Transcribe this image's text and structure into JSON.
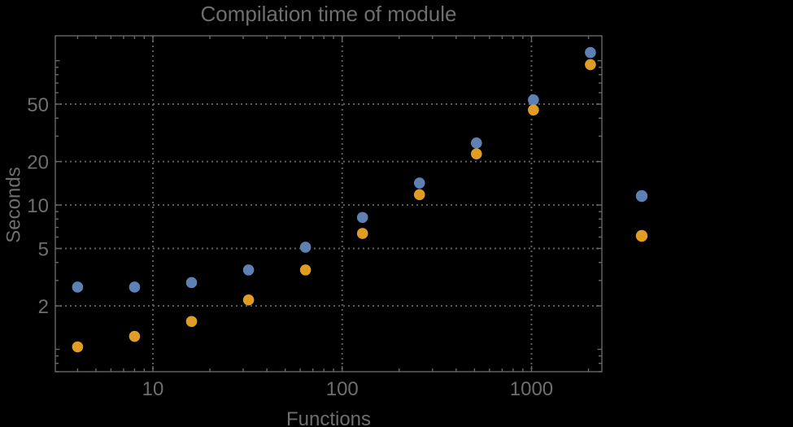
{
  "chart_data": {
    "type": "scatter",
    "title": "Compilation time of module",
    "xlabel": "Functions",
    "ylabel": "Seconds",
    "xscale": "log",
    "yscale": "log",
    "xlim": [
      3.05,
      2354
    ],
    "ylim": [
      0.7,
      148.8
    ],
    "x_ticks": [
      {
        "value": 10,
        "label": "10"
      },
      {
        "value": 100,
        "label": "100"
      },
      {
        "value": 1000,
        "label": "1000"
      }
    ],
    "y_ticks": [
      {
        "value": 2,
        "label": "2"
      },
      {
        "value": 5,
        "label": "5"
      },
      {
        "value": 10,
        "label": "10"
      },
      {
        "value": 20,
        "label": "20"
      },
      {
        "value": 50,
        "label": "50"
      }
    ],
    "grid": {
      "x_values": [
        10,
        100,
        1000
      ],
      "y_values": [
        2,
        5,
        10,
        20,
        50
      ],
      "style": "dotted"
    },
    "x": [
      4,
      8,
      16,
      32,
      64,
      128,
      256,
      512,
      1024,
      2048
    ],
    "series": [
      {
        "name": "series-1",
        "color": "#5E81B5",
        "values": [
          2.7,
          2.7,
          2.9,
          3.55,
          5.1,
          8.2,
          14.2,
          26.9,
          53.5,
          114
        ]
      },
      {
        "name": "series-2",
        "color": "#E19C24",
        "values": [
          1.04,
          1.23,
          1.56,
          2.2,
          3.55,
          6.35,
          11.8,
          22.6,
          45.6,
          94
        ]
      }
    ],
    "legend": {
      "position": "right-center",
      "labels_visible": false,
      "markers": [
        {
          "series": "series-1",
          "color": "#5E81B5"
        },
        {
          "series": "series-2",
          "color": "#E19C24"
        }
      ]
    }
  },
  "colors": {
    "background": "#000000",
    "frame": "#686868",
    "grid": "#5E5E5E",
    "text": "#6E6E6E"
  }
}
